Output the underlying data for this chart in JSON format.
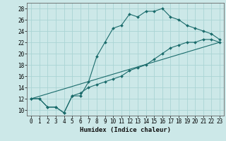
{
  "xlabel": "Humidex (Indice chaleur)",
  "background_color": "#cce8e8",
  "grid_color": "#aad4d4",
  "line_color": "#1a6b6b",
  "xlim": [
    -0.5,
    23.5
  ],
  "ylim": [
    9.0,
    29.0
  ],
  "xticks": [
    0,
    1,
    2,
    3,
    4,
    5,
    6,
    7,
    8,
    9,
    10,
    11,
    12,
    13,
    14,
    15,
    16,
    17,
    18,
    19,
    20,
    21,
    22,
    23
  ],
  "yticks": [
    10,
    12,
    14,
    16,
    18,
    20,
    22,
    24,
    26,
    28
  ],
  "line1_x": [
    0,
    1,
    2,
    3,
    4,
    5,
    6,
    7,
    8,
    9,
    10,
    11,
    12,
    13,
    14,
    15,
    16,
    17,
    18,
    19,
    20,
    21,
    22,
    23
  ],
  "line1_y": [
    12,
    12,
    10.5,
    10.5,
    9.5,
    12.5,
    12.5,
    15,
    19.5,
    22,
    24.5,
    25,
    27,
    26.5,
    27.5,
    27.5,
    28,
    26.5,
    26,
    25,
    24.5,
    24,
    23.5,
    22.5
  ],
  "line2_x": [
    0,
    1,
    2,
    3,
    4,
    5,
    6,
    7,
    8,
    9,
    10,
    11,
    12,
    13,
    14,
    15,
    16,
    17,
    18,
    19,
    20,
    21,
    22,
    23
  ],
  "line2_y": [
    12,
    12,
    10.5,
    10.5,
    9.5,
    12.5,
    13,
    14,
    14.5,
    15,
    15.5,
    16,
    17,
    17.5,
    18,
    19,
    20,
    21,
    21.5,
    22,
    22,
    22.5,
    22.5,
    22
  ],
  "line3_x": [
    0,
    23
  ],
  "line3_y": [
    12,
    22
  ]
}
